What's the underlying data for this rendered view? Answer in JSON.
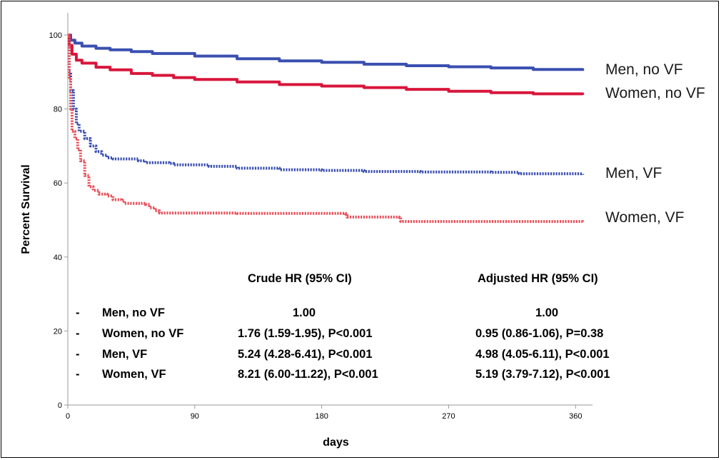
{
  "chart_data": {
    "type": "line",
    "title": "",
    "xlabel": "days",
    "ylabel": "Percent Survival",
    "xlim": [
      0,
      372
    ],
    "ylim": [
      0,
      100
    ],
    "x_ticks": [
      0,
      90,
      180,
      270,
      360
    ],
    "y_ticks": [
      0,
      20,
      40,
      60,
      80,
      100
    ],
    "grid": false,
    "series": [
      {
        "name": "Men, no VF",
        "color": "#3a4fb0",
        "style": "solid",
        "points": [
          [
            0,
            100
          ],
          [
            2,
            98.6
          ],
          [
            5,
            97.8
          ],
          [
            10,
            97.0
          ],
          [
            20,
            96.4
          ],
          [
            30,
            96.0
          ],
          [
            45,
            95.5
          ],
          [
            60,
            95.0
          ],
          [
            90,
            94.3
          ],
          [
            120,
            93.6
          ],
          [
            150,
            93.0
          ],
          [
            180,
            92.6
          ],
          [
            210,
            92.1
          ],
          [
            240,
            91.7
          ],
          [
            270,
            91.4
          ],
          [
            300,
            91.1
          ],
          [
            330,
            90.7
          ],
          [
            365,
            90.3
          ]
        ]
      },
      {
        "name": "Women, no VF",
        "color": "#d8163b",
        "style": "solid",
        "points": [
          [
            0,
            100
          ],
          [
            1,
            97.2
          ],
          [
            3,
            94.8
          ],
          [
            6,
            93.2
          ],
          [
            10,
            92.4
          ],
          [
            20,
            91.3
          ],
          [
            30,
            90.6
          ],
          [
            45,
            89.6
          ],
          [
            60,
            89.1
          ],
          [
            75,
            88.5
          ],
          [
            90,
            88.0
          ],
          [
            120,
            87.3
          ],
          [
            150,
            86.6
          ],
          [
            180,
            86.2
          ],
          [
            210,
            85.8
          ],
          [
            240,
            85.3
          ],
          [
            270,
            84.8
          ],
          [
            300,
            84.4
          ],
          [
            330,
            84.1
          ],
          [
            365,
            83.8
          ]
        ]
      },
      {
        "name": "Men, VF",
        "color": "#3a4fb0",
        "style": "dotted",
        "points": [
          [
            0,
            100
          ],
          [
            1,
            90
          ],
          [
            2,
            85
          ],
          [
            4,
            80
          ],
          [
            6,
            76
          ],
          [
            8,
            74
          ],
          [
            12,
            72
          ],
          [
            16,
            70
          ],
          [
            20,
            68.5
          ],
          [
            24,
            67.5
          ],
          [
            28,
            66.8
          ],
          [
            32,
            66.5
          ],
          [
            50,
            66.0
          ],
          [
            55,
            65.5
          ],
          [
            72,
            65.3
          ],
          [
            75,
            64.9
          ],
          [
            100,
            64.5
          ],
          [
            120,
            64.0
          ],
          [
            150,
            63.6
          ],
          [
            180,
            63.4
          ],
          [
            210,
            63.1
          ],
          [
            250,
            63.0
          ],
          [
            300,
            62.9
          ],
          [
            320,
            62.5
          ],
          [
            365,
            62.2
          ]
        ]
      },
      {
        "name": "Women, VF",
        "color": "#e8505a",
        "style": "dotted",
        "points": [
          [
            0,
            100
          ],
          [
            1,
            88
          ],
          [
            2,
            80
          ],
          [
            3,
            74
          ],
          [
            5,
            72
          ],
          [
            7,
            69
          ],
          [
            9,
            66
          ],
          [
            12,
            62
          ],
          [
            15,
            59
          ],
          [
            18,
            58
          ],
          [
            22,
            57
          ],
          [
            28,
            56.5
          ],
          [
            32,
            55.5
          ],
          [
            38,
            55.3
          ],
          [
            40,
            54.5
          ],
          [
            55,
            54.2
          ],
          [
            58,
            53.3
          ],
          [
            62,
            52.5
          ],
          [
            65,
            51.9
          ],
          [
            120,
            51.8
          ],
          [
            197,
            51.6
          ],
          [
            198,
            50.8
          ],
          [
            235,
            50.7
          ],
          [
            236,
            49.6
          ],
          [
            260,
            49.6
          ],
          [
            365,
            49.5
          ]
        ]
      }
    ],
    "series_labels": [
      "Men, no VF",
      "Women, no VF",
      "Men, VF",
      "Women, VF"
    ],
    "annotation_table": {
      "headers": [
        "Crude HR (95% CI)",
        "Adjusted HR (95% CI)"
      ],
      "rows": [
        {
          "bullet": "-",
          "group": "Men, no VF",
          "crude": "1.00",
          "adjusted": "1.00"
        },
        {
          "bullet": "-",
          "group": "Women, no VF",
          "crude": "1.76 (1.59-1.95), P<0.001",
          "adjusted": "0.95 (0.86-1.06), P=0.38"
        },
        {
          "bullet": "-",
          "group": "Men, VF",
          "crude": "5.24 (4.28-6.41), P<0.001",
          "adjusted": "4.98 (4.05-6.11), P<0.001"
        },
        {
          "bullet": "-",
          "group": "Women, VF",
          "crude": "8.21 (6.00-11.22), P<0.001",
          "adjusted": "5.19 (3.79-7.12), P<0.001"
        }
      ]
    }
  }
}
